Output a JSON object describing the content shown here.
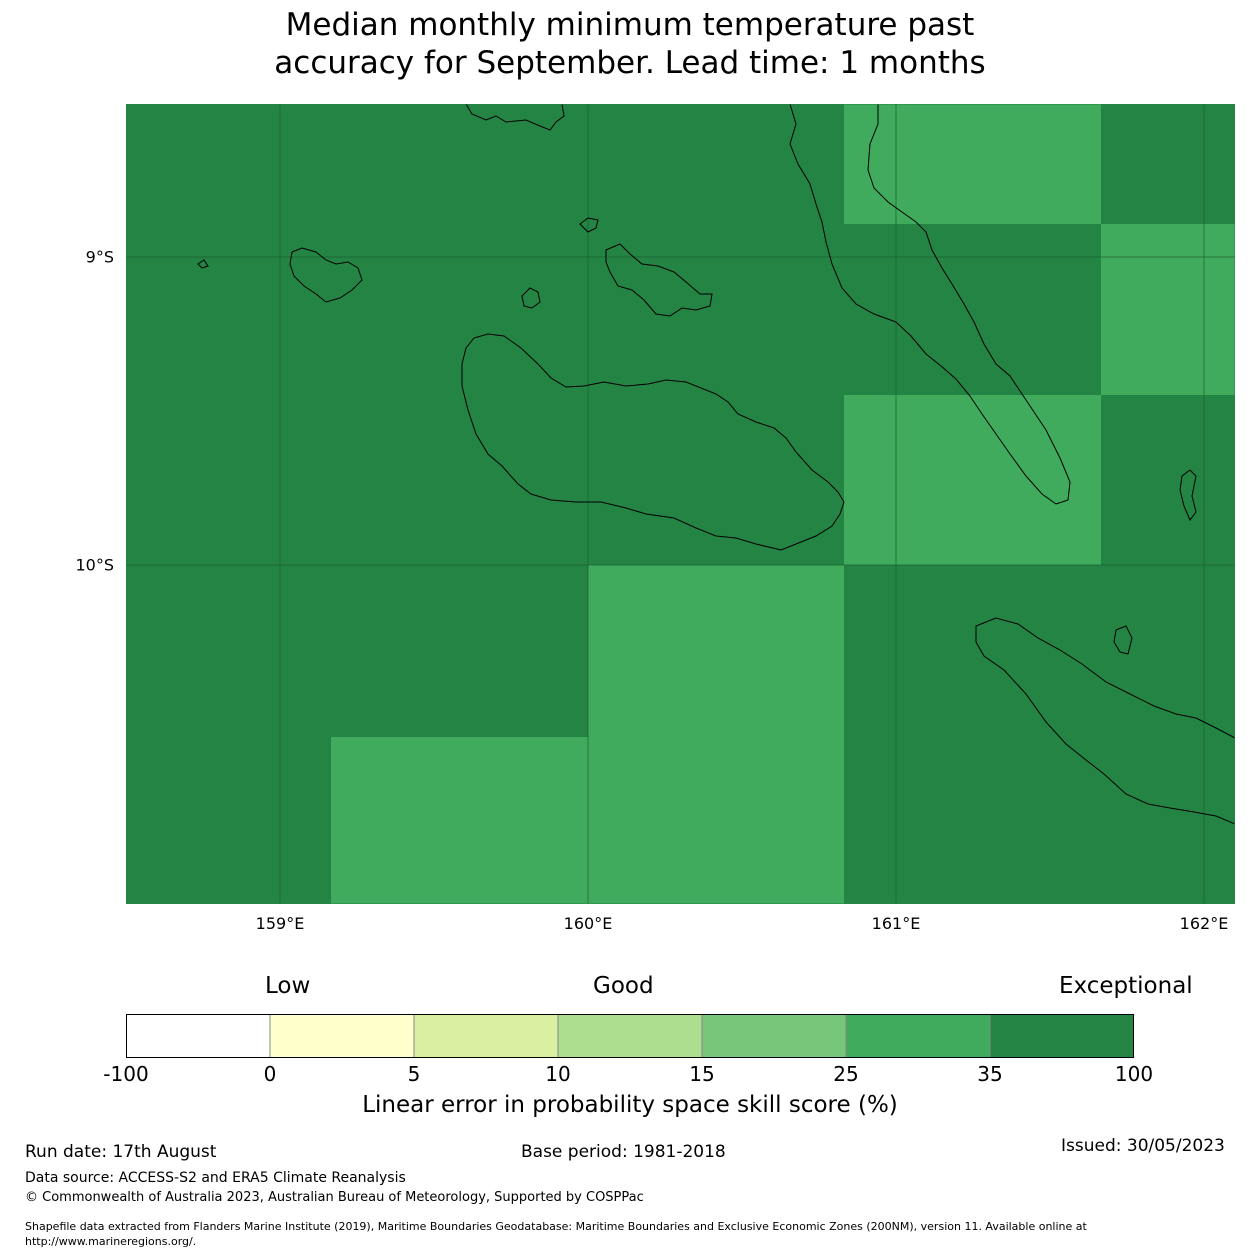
{
  "title": {
    "line1": "Median monthly minimum temperature past",
    "line2": "accuracy for September. Lead time: 1 months"
  },
  "map": {
    "lat_labels": [
      "9°S",
      "10°S"
    ],
    "lon_labels": [
      "159°E",
      "160°E",
      "161°E",
      "162°E"
    ],
    "colors": {
      "exceptional": "#238443",
      "good": "#41ab5d",
      "border": "#000000"
    }
  },
  "legend": {
    "categories": [
      "Low",
      "Good",
      "Exceptional"
    ],
    "ticks": [
      "-100",
      "0",
      "5",
      "10",
      "15",
      "25",
      "35",
      "100"
    ],
    "colors": [
      "#ffffff",
      "#ffffcc",
      "#d9f0a3",
      "#addd8e",
      "#78c679",
      "#41ab5d",
      "#238443"
    ],
    "title": "Linear error in probability space skill score (%)"
  },
  "footer": {
    "run_date": "Run date: 17th August",
    "base_period": "Base period: 1981-2018",
    "issued": "Issued: 30/05/2023",
    "data_source": "Data source: ACCESS-S2 and ERA5 Climate Reanalysis",
    "copyright": "© Commonwealth of Australia 2023, Australian Bureau of Meteorology, Supported by COSPPac",
    "shapefile_line1": "Shapefile data extracted from Flanders Marine Institute (2019), Maritime Boundaries Geodatabase: Maritime Boundaries and Exclusive Economic Zones (200NM), version 11. Available online at",
    "shapefile_line2": "http://www.marineregions.org/."
  }
}
